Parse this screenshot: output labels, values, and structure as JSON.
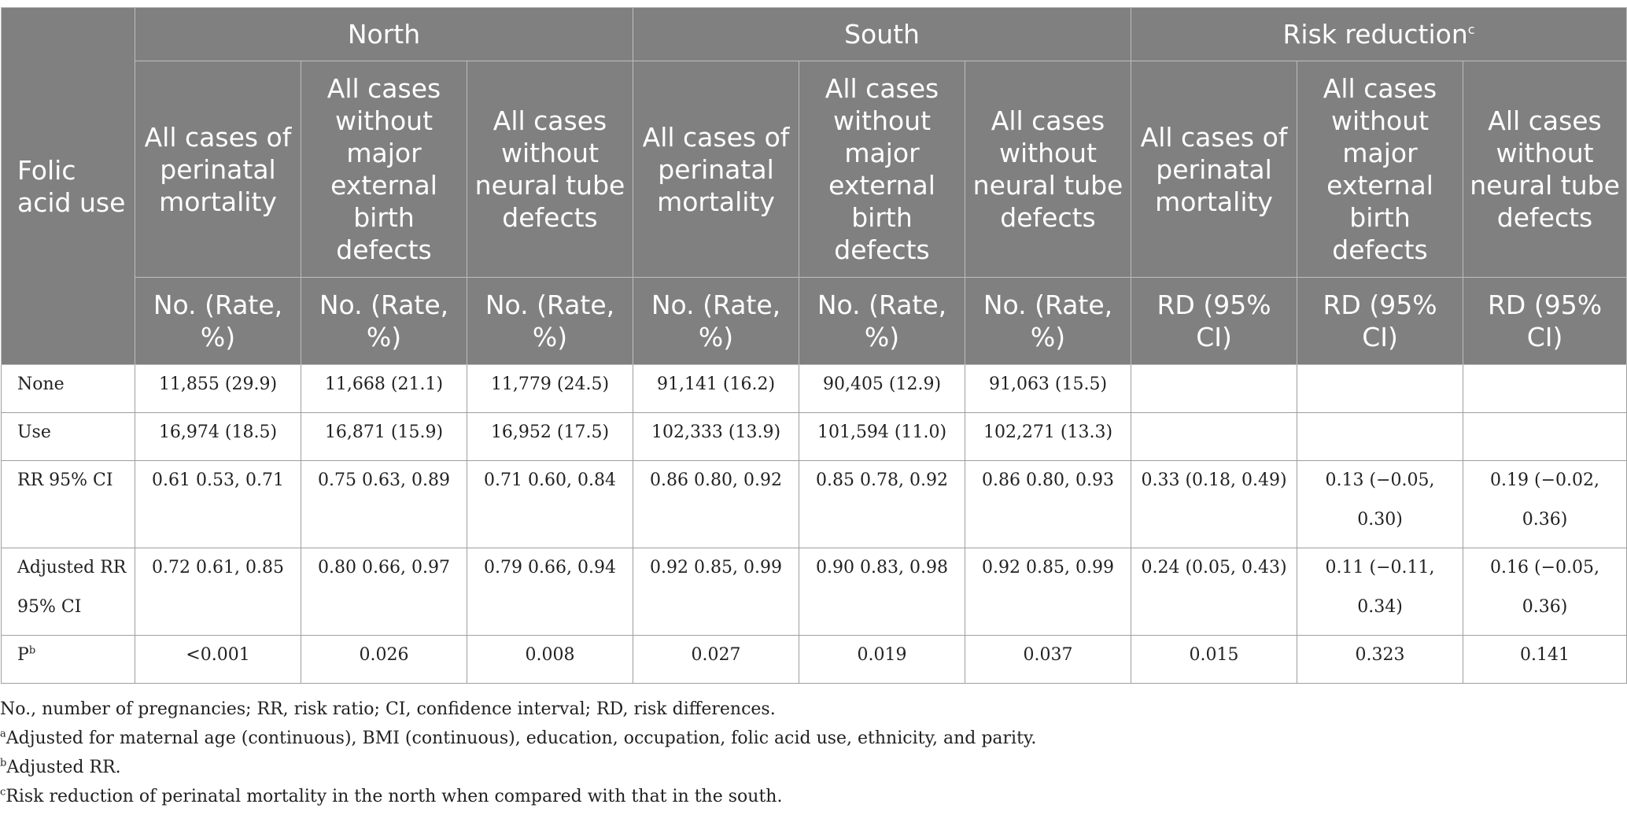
{
  "header": {
    "row_label": "Folic acid use",
    "groups": [
      {
        "label": "North",
        "sup": ""
      },
      {
        "label": "South",
        "sup": ""
      },
      {
        "label": "Risk reduction",
        "sup": "c"
      }
    ],
    "subcols": [
      "All cases of perinatal mortality",
      "All cases without major external birth defects",
      "All cases without neural tube defects",
      "All cases of perinatal mortality",
      "All cases without major external birth defects",
      "All cases without neural tube defects",
      "All cases of perinatal mortality",
      "All cases without major external birth defects",
      "All cases without neural tube defects"
    ],
    "units": [
      "No. (Rate, %)",
      "No. (Rate, %)",
      "No. (Rate, %)",
      "No. (Rate, %)",
      "No. (Rate, %)",
      "No. (Rate, %)",
      "RD (95% CI)",
      "RD (95% CI)",
      "RD (95% CI)"
    ]
  },
  "rows": [
    {
      "label": "None",
      "label_sup": "",
      "cells": [
        "11,855 (29.9)",
        "11,668 (21.1)",
        "11,779 (24.5)",
        "91,141 (16.2)",
        "90,405 (12.9)",
        "91,063 (15.5)",
        "",
        "",
        ""
      ]
    },
    {
      "label": "Use",
      "label_sup": "",
      "cells": [
        "16,974 (18.5)",
        "16,871 (15.9)",
        "16,952 (17.5)",
        "102,333 (13.9)",
        "101,594 (11.0)",
        "102,271 (13.3)",
        "",
        "",
        ""
      ]
    },
    {
      "label": "RR 95% CI",
      "label_sup": "",
      "cells": [
        "0.61 0.53, 0.71",
        "0.75 0.63, 0.89",
        "0.71 0.60, 0.84",
        "0.86 0.80, 0.92",
        "0.85 0.78, 0.92",
        "0.86 0.80, 0.93",
        "0.33 (0.18, 0.49)",
        "0.13 (−0.05, 0.30)",
        "0.19 (−0.02, 0.36)"
      ]
    },
    {
      "label": "Adjusted RR 95% CI",
      "label_sup": "",
      "cells": [
        "0.72 0.61, 0.85",
        "0.80 0.66, 0.97",
        "0.79 0.66, 0.94",
        "0.92 0.85, 0.99",
        "0.90 0.83, 0.98",
        "0.92 0.85, 0.99",
        "0.24 (0.05, 0.43)",
        "0.11 (−0.11, 0.34)",
        "0.16 (−0.05, 0.36)"
      ]
    },
    {
      "label": "P",
      "label_sup": "b",
      "cells": [
        "<0.001",
        "0.026",
        "0.008",
        "0.027",
        "0.019",
        "0.037",
        "0.015",
        "0.323",
        "0.141"
      ]
    }
  ],
  "footnotes": [
    {
      "sup": "",
      "text": "No., number of pregnancies; RR, risk ratio; CI, confidence interval; RD, risk differences."
    },
    {
      "sup": "a",
      "text": "Adjusted for maternal age (continuous), BMI (continuous), education, occupation, folic acid use, ethnicity, and parity."
    },
    {
      "sup": "b",
      "text": "Adjusted RR."
    },
    {
      "sup": "c",
      "text": "Risk reduction of perinatal mortality in the north when compared with that in the south."
    }
  ]
}
